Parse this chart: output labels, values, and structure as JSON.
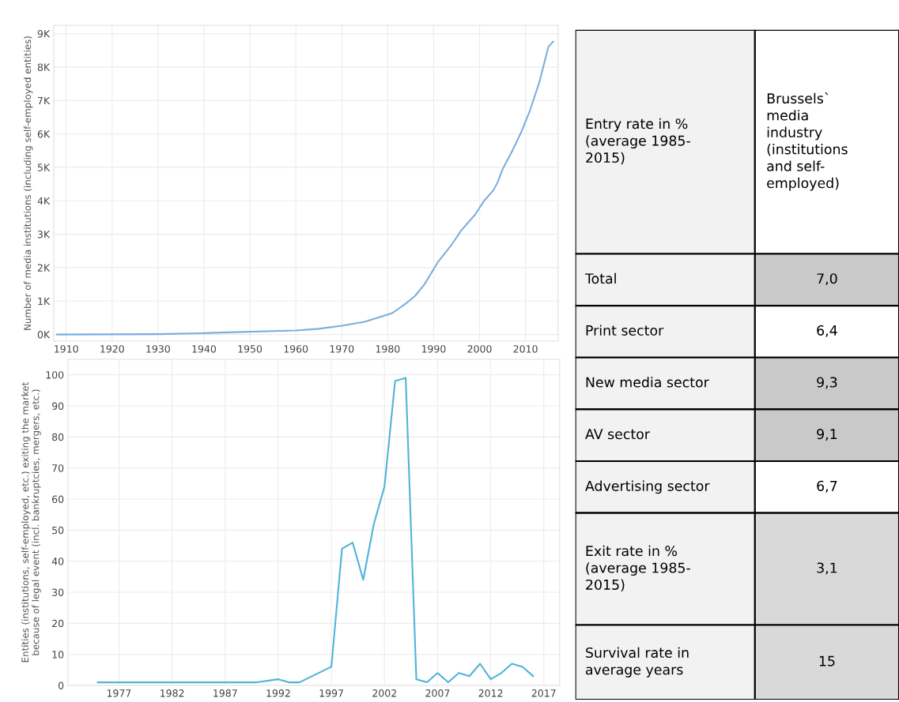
{
  "chart_data": [
    {
      "type": "line",
      "ylabel": "Number of media institutions (including self-employed entities)",
      "grid": true,
      "marker": "none",
      "line_style": "solid",
      "xlim": [
        1907.3,
        2017.1
      ],
      "xticks": [
        1910,
        1920,
        1930,
        1940,
        1950,
        1960,
        1970,
        1980,
        1990,
        2000,
        2010
      ],
      "ylim": [
        -200,
        9250
      ],
      "yticks": [
        {
          "value": 0,
          "label": "0K"
        },
        {
          "value": 1000,
          "label": "1K"
        },
        {
          "value": 2000,
          "label": "2K"
        },
        {
          "value": 3000,
          "label": "3K"
        },
        {
          "value": 4000,
          "label": "4K"
        },
        {
          "value": 5000,
          "label": "5K"
        },
        {
          "value": 6000,
          "label": "6K"
        },
        {
          "value": 7000,
          "label": "7K"
        },
        {
          "value": 8000,
          "label": "8K"
        },
        {
          "value": 9000,
          "label": "9K"
        }
      ],
      "x": [
        1908,
        1930,
        1940,
        1947,
        1960,
        1965,
        1970,
        1975,
        1978,
        1981,
        1984,
        1986,
        1988,
        1991,
        1994,
        1996,
        1999,
        2001,
        2003,
        2004,
        2005,
        2007,
        2009,
        2011,
        2013,
        2015,
        2016
      ],
      "series": [
        {
          "color": "#7aaee0",
          "values": [
            0,
            10,
            40,
            70,
            120,
            170,
            260,
            380,
            510,
            640,
            930,
            1160,
            1500,
            2180,
            2700,
            3110,
            3580,
            4000,
            4310,
            4570,
            4940,
            5460,
            6030,
            6710,
            7540,
            8610,
            8760
          ]
        }
      ]
    },
    {
      "type": "line",
      "ylabel": "Entities (institutions, self-employed, etc.) exiting the market\nbecause of legal event (incl. bankruptcies, mergers, etc.)",
      "grid": true,
      "marker": "none",
      "line_style": "solid",
      "xlim": [
        1972.2,
        2018.5
      ],
      "xticks": [
        1977,
        1982,
        1987,
        1992,
        1997,
        2002,
        2007,
        2012,
        2017
      ],
      "ylim": [
        0,
        105
      ],
      "yticks": [
        0,
        10,
        20,
        30,
        40,
        50,
        60,
        70,
        80,
        90,
        100
      ],
      "x": [
        1975,
        1990,
        1992,
        1993,
        1994,
        1997,
        1998,
        1999,
        2000,
        2001,
        2002,
        2003,
        2004,
        2005,
        2006,
        2007,
        2008,
        2009,
        2010,
        2011,
        2012,
        2013,
        2014,
        2015,
        2016
      ],
      "series": [
        {
          "color": "#4fb3d9",
          "values": [
            1,
            1,
            2,
            1,
            1,
            6,
            44,
            46,
            34,
            52,
            64,
            98,
            99,
            2,
            1,
            4,
            1,
            4,
            3,
            7,
            2,
            4,
            7,
            6,
            3
          ]
        }
      ]
    },
    {
      "type": "other",
      "annotations": [
        "Entry rate in %\n(average 1985-\n2015)",
        "Brussels`\nmedia\nindustry\n(institutions\nand self-\nemployed)",
        "Total",
        "7,0",
        "Print sector",
        "6,4",
        "New media sector",
        "9,3",
        "AV sector",
        "9,1",
        "Advertising sector",
        "6,7",
        "Exit rate in %\n(average 1985-\n2015)",
        "3,1",
        "Survival rate in\naverage years",
        "15"
      ],
      "colors": [
        "#ffffff",
        "#c9c9c9",
        "#ffffff",
        "#c9c9c9",
        "#c9c9c9",
        "#ffffff",
        "#d9d9d9",
        "#d9d9d9"
      ]
    }
  ]
}
